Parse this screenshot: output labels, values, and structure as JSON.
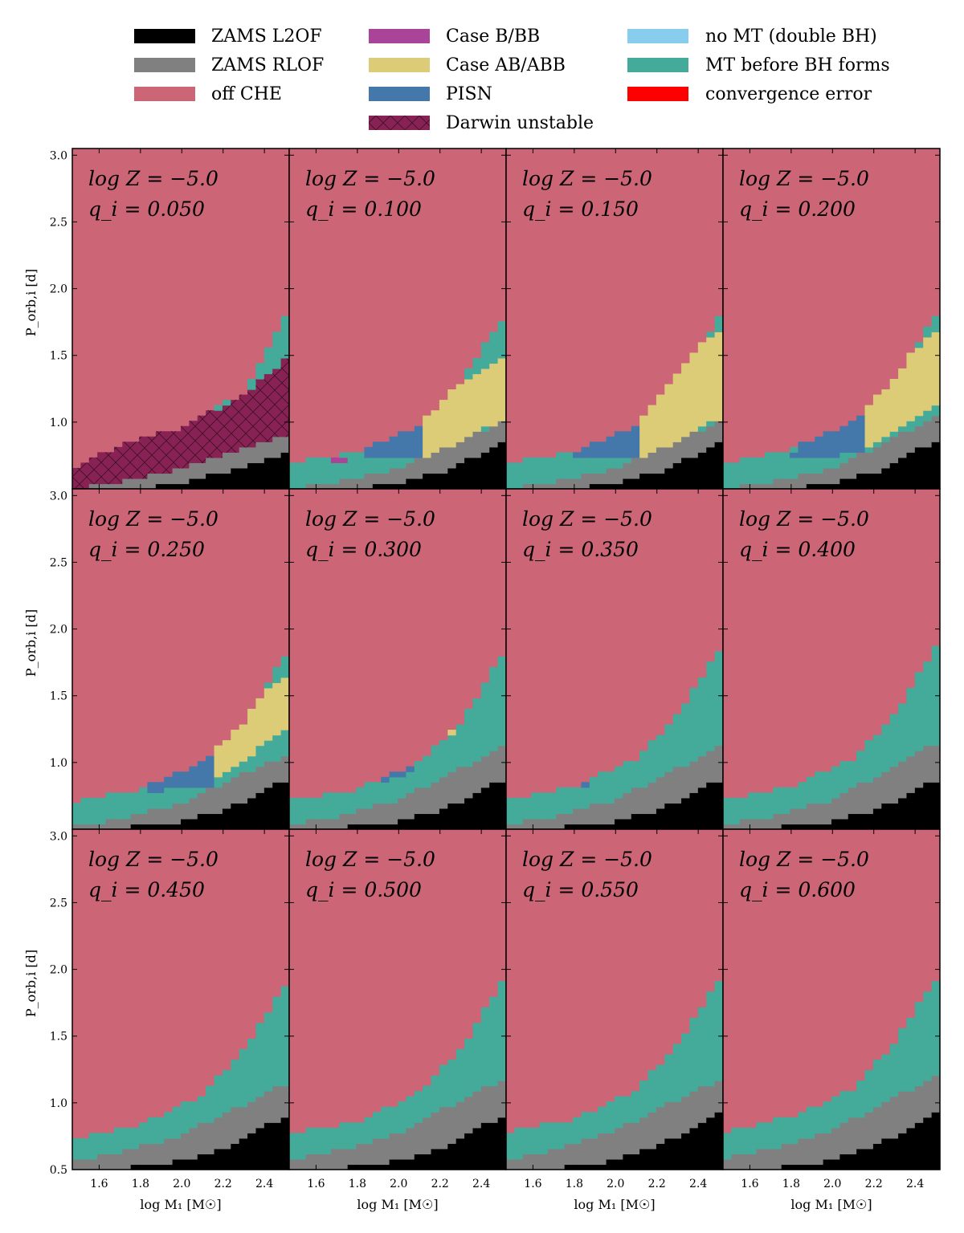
{
  "legend": {
    "items": [
      {
        "label": "ZAMS L2OF",
        "color": "#000000"
      },
      {
        "label": "ZAMS RLOF",
        "color": "#808080"
      },
      {
        "label": "off CHE",
        "color": "#cc6677"
      },
      {
        "label": "Case B/BB",
        "color": "#aa4499"
      },
      {
        "label": "Case AB/ABB",
        "color": "#ddcc77"
      },
      {
        "label": "PISN",
        "color": "#4477aa"
      },
      {
        "label": "Darwin unstable",
        "color": "#882255",
        "hatched": true
      },
      {
        "label": "no MT (double BH)",
        "color": "#88ccee"
      },
      {
        "label": "MT before BH forms",
        "color": "#44aa99"
      },
      {
        "label": "convergence error",
        "color": "#ff0000"
      }
    ]
  },
  "chart_data": {
    "type": "heatmap",
    "layout": "3x4 grid of panels sharing axes",
    "xlabel": "log M₁ [M☉]",
    "ylabel": "P_orb,i [d]",
    "xlim": [
      1.47,
      2.52
    ],
    "ylim": [
      0.5,
      3.05
    ],
    "x_ticks": [
      "1.6",
      "1.8",
      "2.0",
      "2.2",
      "2.4"
    ],
    "x_tick_values": [
      1.6,
      1.8,
      2.0,
      2.2,
      2.4
    ],
    "y_ticks_top_row": [
      "3.0",
      "2.5",
      "2.0",
      "1.5",
      "1.0",
      "0.5"
    ],
    "y_ticks_other_rows": [
      "3.0",
      "2.5",
      "2.0",
      "1.5",
      "1.0"
    ],
    "y_tick_values": [
      3.0,
      2.5,
      2.0,
      1.5,
      1.0,
      0.5
    ],
    "y_ticks_bottom_row": [
      "3.0",
      "2.5",
      "2.0",
      "1.5",
      "1.0",
      "0.5"
    ],
    "panels": [
      {
        "metallicity": "log Z = −5.0",
        "q": "q_i = 0.050",
        "q_value": 0.05,
        "boundaries": {
          "l2of": [
            [
              1.47,
              0.5
            ],
            [
              1.9,
              0.52
            ],
            [
              2.2,
              0.62
            ],
            [
              2.52,
              0.78
            ]
          ],
          "rlof": [
            [
              1.47,
              0.5
            ],
            [
              1.7,
              0.55
            ],
            [
              2.0,
              0.66
            ],
            [
              2.52,
              0.92
            ]
          ],
          "mt_top": [
            [
              1.47,
              0.66
            ],
            [
              2.0,
              0.96
            ],
            [
              2.3,
              1.22
            ],
            [
              2.52,
              1.85
            ]
          ]
        },
        "darwin": [
          [
            1.47,
            0.66
          ],
          [
            1.75,
            0.85
          ],
          [
            2.0,
            0.96
          ],
          [
            2.3,
            1.2
          ],
          [
            2.52,
            1.5
          ],
          [
            2.52,
            0.92
          ],
          [
            2.0,
            0.66
          ],
          [
            1.7,
            0.55
          ],
          [
            1.47,
            0.5
          ]
        ]
      },
      {
        "metallicity": "log Z = −5.0",
        "q": "q_i = 0.100",
        "q_value": 0.1,
        "boundaries": {
          "l2of": [
            [
              1.47,
              0.5
            ],
            [
              1.9,
              0.52
            ],
            [
              2.2,
              0.62
            ],
            [
              2.52,
              0.86
            ]
          ],
          "rlof": [
            [
              1.47,
              0.5
            ],
            [
              1.7,
              0.55
            ],
            [
              2.0,
              0.65
            ],
            [
              2.52,
              1.01
            ]
          ],
          "mt_top": [
            [
              1.47,
              0.69
            ],
            [
              1.8,
              0.78
            ],
            [
              2.1,
              0.98
            ],
            [
              2.3,
              1.3
            ],
            [
              2.52,
              1.82
            ]
          ]
        },
        "ab": [
          [
            2.1,
            0.68
          ],
          [
            2.52,
            1.04
          ],
          [
            2.52,
            1.52
          ],
          [
            2.3,
            1.3
          ],
          [
            2.12,
            1.17
          ]
        ],
        "pisn": [
          [
            1.82,
            0.72
          ],
          [
            2.1,
            0.72
          ],
          [
            2.12,
            1.17
          ],
          [
            1.9,
            0.92
          ]
        ],
        "caseb": [
          [
            1.68,
            0.69
          ],
          [
            1.74,
            0.69
          ],
          [
            1.74,
            0.74
          ],
          [
            1.68,
            0.74
          ]
        ]
      },
      {
        "metallicity": "log Z = −5.0",
        "q": "q_i = 0.150",
        "q_value": 0.15,
        "boundaries": {
          "l2of": [
            [
              1.47,
              0.5
            ],
            [
              1.9,
              0.52
            ],
            [
              2.2,
              0.62
            ],
            [
              2.52,
              0.86
            ]
          ],
          "rlof": [
            [
              1.47,
              0.5
            ],
            [
              1.7,
              0.55
            ],
            [
              2.0,
              0.65
            ],
            [
              2.52,
              1.01
            ]
          ],
          "mt_top": [
            [
              1.47,
              0.69
            ],
            [
              1.8,
              0.78
            ],
            [
              2.1,
              0.98
            ],
            [
              2.3,
              1.35
            ],
            [
              2.52,
              1.82
            ]
          ]
        },
        "ab": [
          [
            2.12,
            0.72
          ],
          [
            2.52,
            1.04
          ],
          [
            2.52,
            1.72
          ],
          [
            2.3,
            1.45
          ],
          [
            2.13,
            1.15
          ]
        ],
        "pisn": [
          [
            1.8,
            0.74
          ],
          [
            2.12,
            0.72
          ],
          [
            2.13,
            1.15
          ],
          [
            1.9,
            0.97
          ]
        ]
      },
      {
        "metallicity": "log Z = −5.0",
        "q": "q_i = 0.200",
        "q_value": 0.2,
        "boundaries": {
          "l2of": [
            [
              1.47,
              0.5
            ],
            [
              1.9,
              0.52
            ],
            [
              2.2,
              0.62
            ],
            [
              2.52,
              0.88
            ]
          ],
          "rlof": [
            [
              1.47,
              0.5
            ],
            [
              1.7,
              0.55
            ],
            [
              2.0,
              0.65
            ],
            [
              2.52,
              1.06
            ]
          ],
          "mt_top": [
            [
              1.47,
              0.69
            ],
            [
              1.8,
              0.8
            ],
            [
              2.1,
              1.0
            ],
            [
              2.3,
              1.33
            ],
            [
              2.52,
              1.85
            ]
          ]
        },
        "ab": [
          [
            2.14,
            0.78
          ],
          [
            2.52,
            1.13
          ],
          [
            2.52,
            1.72
          ],
          [
            2.3,
            1.38
          ],
          [
            2.15,
            1.12
          ]
        ],
        "pisn": [
          [
            1.8,
            0.74
          ],
          [
            2.14,
            0.76
          ],
          [
            2.15,
            1.12
          ],
          [
            1.9,
            0.96
          ]
        ]
      },
      {
        "metallicity": "log Z = −5.0",
        "q": "q_i = 0.250",
        "q_value": 0.25,
        "boundaries": {
          "l2of": [
            [
              1.47,
              0.5
            ],
            [
              1.9,
              0.53
            ],
            [
              2.2,
              0.64
            ],
            [
              2.52,
              0.88
            ]
          ],
          "rlof": [
            [
              1.47,
              0.52
            ],
            [
              1.7,
              0.58
            ],
            [
              2.0,
              0.7
            ],
            [
              2.52,
              1.07
            ]
          ],
          "mt_top": [
            [
              1.47,
              0.7
            ],
            [
              1.8,
              0.8
            ],
            [
              2.1,
              1.0
            ],
            [
              2.3,
              1.3
            ],
            [
              2.52,
              1.85
            ]
          ]
        },
        "ab": [
          [
            2.14,
            0.83
          ],
          [
            2.52,
            1.28
          ],
          [
            2.52,
            1.67
          ],
          [
            2.3,
            1.4
          ],
          [
            2.18,
            1.17
          ]
        ],
        "pisn": [
          [
            1.82,
            0.78
          ],
          [
            2.14,
            0.83
          ],
          [
            2.18,
            1.17
          ],
          [
            1.9,
            0.92
          ]
        ]
      },
      {
        "metallicity": "log Z = −5.0",
        "q": "q_i = 0.300",
        "q_value": 0.3,
        "boundaries": {
          "l2of": [
            [
              1.47,
              0.5
            ],
            [
              1.9,
              0.53
            ],
            [
              2.2,
              0.64
            ],
            [
              2.52,
              0.88
            ]
          ],
          "rlof": [
            [
              1.47,
              0.53
            ],
            [
              1.7,
              0.6
            ],
            [
              2.0,
              0.72
            ],
            [
              2.52,
              1.13
            ]
          ],
          "mt_top": [
            [
              1.47,
              0.72
            ],
            [
              1.8,
              0.8
            ],
            [
              2.1,
              1.0
            ],
            [
              2.3,
              1.3
            ],
            [
              2.52,
              1.85
            ]
          ]
        },
        "ab": [
          [
            2.22,
            1.2
          ],
          [
            2.27,
            1.2
          ],
          [
            2.27,
            1.3
          ],
          [
            2.22,
            1.3
          ]
        ],
        "pisn": [
          [
            1.85,
            0.82
          ],
          [
            2.1,
            0.94
          ],
          [
            2.05,
            1.02
          ],
          [
            1.9,
            0.9
          ]
        ]
      },
      {
        "metallicity": "log Z = −5.0",
        "q": "q_i = 0.350",
        "q_value": 0.35,
        "boundaries": {
          "l2of": [
            [
              1.47,
              0.5
            ],
            [
              1.9,
              0.53
            ],
            [
              2.2,
              0.64
            ],
            [
              2.52,
              0.88
            ]
          ],
          "rlof": [
            [
              1.47,
              0.53
            ],
            [
              1.7,
              0.6
            ],
            [
              2.0,
              0.72
            ],
            [
              2.52,
              1.13
            ]
          ],
          "mt_top": [
            [
              1.47,
              0.72
            ],
            [
              1.8,
              0.82
            ],
            [
              2.1,
              1.03
            ],
            [
              2.3,
              1.35
            ],
            [
              2.52,
              1.9
            ]
          ]
        },
        "pisn": [
          [
            1.78,
            0.8
          ],
          [
            1.86,
            0.83
          ],
          [
            1.82,
            0.88
          ],
          [
            1.78,
            0.85
          ]
        ]
      },
      {
        "metallicity": "log Z = −5.0",
        "q": "q_i = 0.400",
        "q_value": 0.4,
        "boundaries": {
          "l2of": [
            [
              1.47,
              0.5
            ],
            [
              1.9,
              0.53
            ],
            [
              2.2,
              0.64
            ],
            [
              2.52,
              0.88
            ]
          ],
          "rlof": [
            [
              1.47,
              0.53
            ],
            [
              1.7,
              0.6
            ],
            [
              2.0,
              0.72
            ],
            [
              2.52,
              1.16
            ]
          ],
          "mt_top": [
            [
              1.47,
              0.72
            ],
            [
              1.8,
              0.82
            ],
            [
              2.1,
              1.03
            ],
            [
              2.3,
              1.35
            ],
            [
              2.52,
              1.92
            ]
          ]
        }
      },
      {
        "metallicity": "log Z = −5.0",
        "q": "q_i = 0.450",
        "q_value": 0.45,
        "boundaries": {
          "l2of": [
            [
              1.47,
              0.5
            ],
            [
              1.9,
              0.53
            ],
            [
              2.2,
              0.66
            ],
            [
              2.52,
              0.92
            ]
          ],
          "rlof": [
            [
              1.47,
              0.56
            ],
            [
              1.7,
              0.63
            ],
            [
              2.0,
              0.76
            ],
            [
              2.52,
              1.16
            ]
          ],
          "mt_top": [
            [
              1.47,
              0.72
            ],
            [
              1.8,
              0.84
            ],
            [
              2.1,
              1.06
            ],
            [
              2.3,
              1.4
            ],
            [
              2.52,
              1.93
            ]
          ]
        }
      },
      {
        "metallicity": "log Z = −5.0",
        "q": "q_i = 0.500",
        "q_value": 0.5,
        "boundaries": {
          "l2of": [
            [
              1.47,
              0.5
            ],
            [
              1.9,
              0.53
            ],
            [
              2.2,
              0.66
            ],
            [
              2.52,
              0.92
            ]
          ],
          "rlof": [
            [
              1.47,
              0.57
            ],
            [
              1.7,
              0.64
            ],
            [
              2.0,
              0.78
            ],
            [
              2.52,
              1.19
            ]
          ],
          "mt_top": [
            [
              1.47,
              0.77
            ],
            [
              1.8,
              0.86
            ],
            [
              2.1,
              1.08
            ],
            [
              2.3,
              1.4
            ],
            [
              2.52,
              1.97
            ]
          ]
        }
      },
      {
        "metallicity": "log Z = −5.0",
        "q": "q_i = 0.550",
        "q_value": 0.55,
        "boundaries": {
          "l2of": [
            [
              1.47,
              0.5
            ],
            [
              1.9,
              0.53
            ],
            [
              2.2,
              0.67
            ],
            [
              2.52,
              0.93
            ]
          ],
          "rlof": [
            [
              1.47,
              0.57
            ],
            [
              1.7,
              0.65
            ],
            [
              2.0,
              0.8
            ],
            [
              2.52,
              1.19
            ]
          ],
          "mt_top": [
            [
              1.47,
              0.78
            ],
            [
              1.8,
              0.88
            ],
            [
              2.1,
              1.1
            ],
            [
              2.3,
              1.43
            ],
            [
              2.52,
              1.98
            ]
          ]
        }
      },
      {
        "metallicity": "log Z = −5.0",
        "q": "q_i = 0.600",
        "q_value": 0.6,
        "boundaries": {
          "l2of": [
            [
              1.47,
              0.5
            ],
            [
              1.9,
              0.53
            ],
            [
              2.2,
              0.67
            ],
            [
              2.52,
              0.93
            ]
          ],
          "rlof": [
            [
              1.47,
              0.58
            ],
            [
              1.7,
              0.66
            ],
            [
              2.0,
              0.8
            ],
            [
              2.52,
              1.22
            ]
          ],
          "mt_top": [
            [
              1.47,
              0.78
            ],
            [
              1.8,
              0.9
            ],
            [
              2.1,
              1.1
            ],
            [
              2.3,
              1.45
            ],
            [
              2.52,
              1.98
            ]
          ]
        }
      }
    ]
  }
}
